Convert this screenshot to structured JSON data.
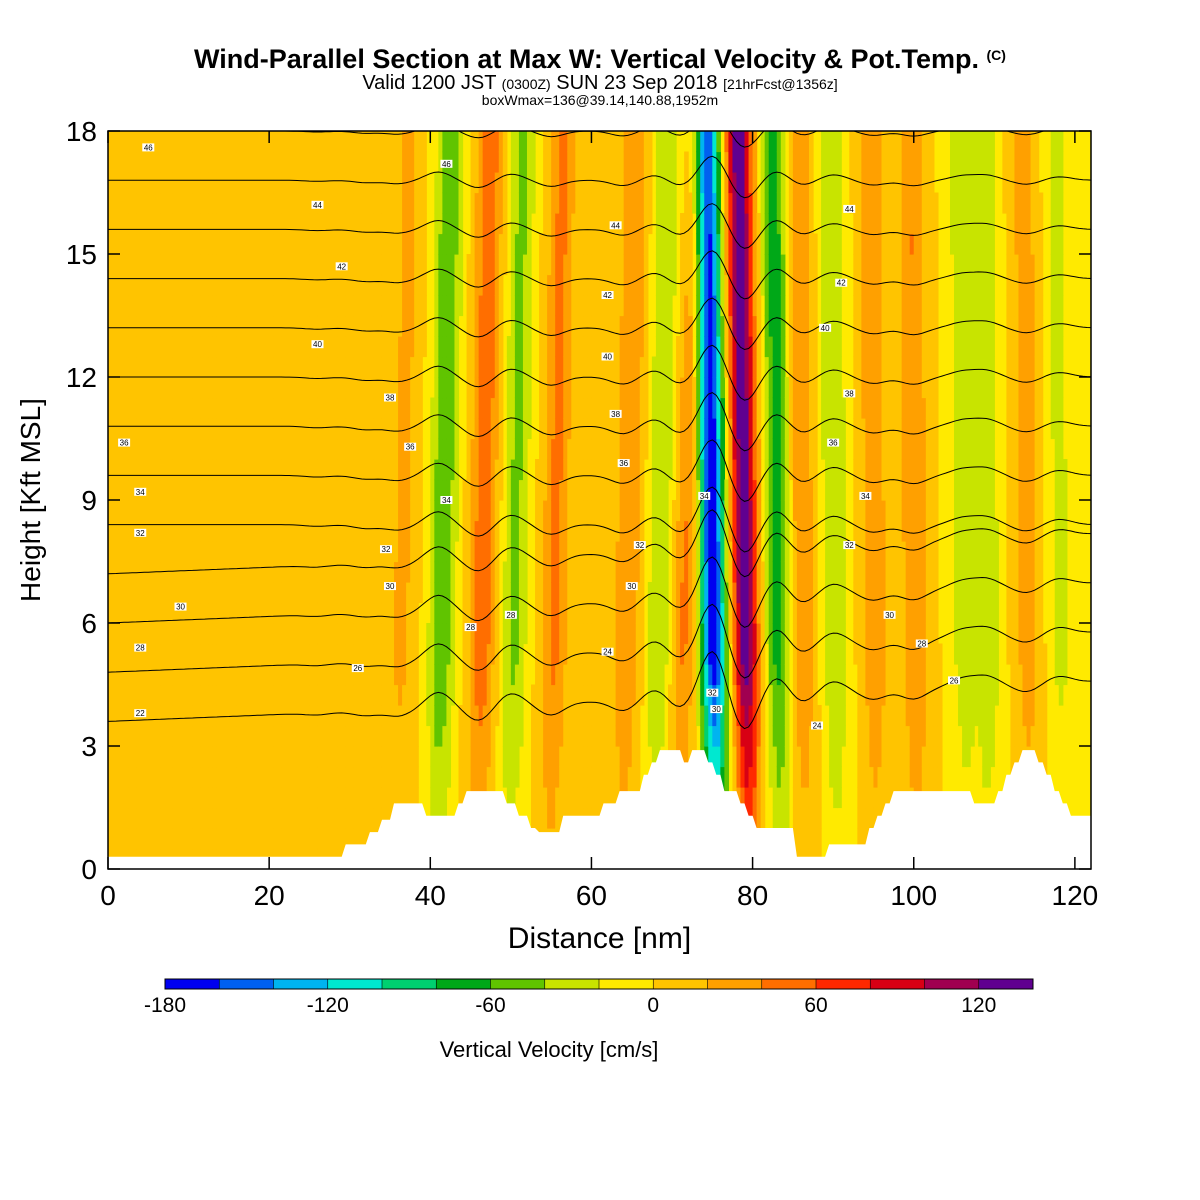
{
  "header": {
    "title": "Wind-Parallel Section at Max W: Vertical Velocity & Pot.Temp.",
    "copyright": "(C)",
    "valid_main": "Valid 1200 JST",
    "valid_utc": "(0300Z)",
    "valid_date": "SUN 23 Sep 2018",
    "forecast": "[21hrFcst@1356z]",
    "boxinfo": "boxWmax=136@39.14,140.88,1952m"
  },
  "chart_data": {
    "type": "heatmap",
    "title": "Wind-Parallel Section at Max W: Vertical Velocity & Pot.Temp.",
    "xlabel": "Distance [nm]",
    "ylabel": "Height [Kft MSL]",
    "xlim": [
      0,
      122
    ],
    "ylim": [
      0,
      18
    ],
    "x_ticks": [
      0,
      20,
      40,
      60,
      80,
      100,
      120
    ],
    "y_ticks": [
      0,
      3,
      6,
      9,
      12,
      15,
      18
    ],
    "colorbar": {
      "label": "Vertical Velocity [cm/s]",
      "ticks": [
        -180,
        -120,
        -60,
        0,
        60,
        120
      ],
      "range": [
        -180,
        140
      ],
      "colors": [
        "#0000f0",
        "#0060f0",
        "#00b4f0",
        "#00e8d0",
        "#00d070",
        "#00a818",
        "#60c400",
        "#c8e400",
        "#ffea00",
        "#ffc400",
        "#ffa000",
        "#ff6e00",
        "#ff2800",
        "#d80014",
        "#a00050",
        "#600090"
      ]
    },
    "w_features": [
      {
        "x": 26,
        "w": 8
      },
      {
        "x": 32,
        "w": 18
      },
      {
        "x": 36,
        "w": 25
      },
      {
        "x": 41,
        "w": -60
      },
      {
        "x": 46,
        "w": 55
      },
      {
        "x": 50,
        "w": -45
      },
      {
        "x": 55,
        "w": 45
      },
      {
        "x": 64,
        "w": 40
      },
      {
        "x": 68,
        "w": -40
      },
      {
        "x": 71,
        "w": 45
      },
      {
        "x": 75,
        "w": -180
      },
      {
        "x": 79,
        "w": 136
      },
      {
        "x": 83,
        "w": -70
      },
      {
        "x": 86,
        "w": 40
      },
      {
        "x": 90,
        "w": -40
      },
      {
        "x": 95,
        "w": 35
      },
      {
        "x": 100,
        "w": 40
      },
      {
        "x": 106,
        "w": -30
      },
      {
        "x": 109,
        "w": -35
      },
      {
        "x": 114,
        "w": 30
      },
      {
        "x": 118,
        "w": -25
      }
    ],
    "theta_contours": [
      22,
      24,
      26,
      28,
      30,
      32,
      34,
      36,
      38,
      40,
      42,
      44,
      46
    ],
    "theta_labels": [
      {
        "text": "46",
        "x": 5,
        "y": 17.6
      },
      {
        "text": "44",
        "x": 26,
        "y": 16.2
      },
      {
        "text": "42",
        "x": 29,
        "y": 14.7
      },
      {
        "text": "40",
        "x": 26,
        "y": 12.8
      },
      {
        "text": "38",
        "x": 35,
        "y": 11.5
      },
      {
        "text": "36",
        "x": 37.5,
        "y": 10.3
      },
      {
        "text": "36",
        "x": 2,
        "y": 10.4
      },
      {
        "text": "34",
        "x": 4,
        "y": 9.2
      },
      {
        "text": "34",
        "x": 42,
        "y": 9.0
      },
      {
        "text": "32",
        "x": 4,
        "y": 8.2
      },
      {
        "text": "32",
        "x": 34.5,
        "y": 7.8
      },
      {
        "text": "30",
        "x": 35,
        "y": 6.9
      },
      {
        "text": "30",
        "x": 9,
        "y": 6.4
      },
      {
        "text": "28",
        "x": 4,
        "y": 5.4
      },
      {
        "text": "28",
        "x": 45,
        "y": 5.9
      },
      {
        "text": "28",
        "x": 50,
        "y": 6.2
      },
      {
        "text": "26",
        "x": 31,
        "y": 4.9
      },
      {
        "text": "22",
        "x": 4,
        "y": 3.8
      },
      {
        "text": "46",
        "x": 42,
        "y": 17.2
      },
      {
        "text": "44",
        "x": 63,
        "y": 15.7
      },
      {
        "text": "42",
        "x": 62,
        "y": 14.0
      },
      {
        "text": "40",
        "x": 62,
        "y": 12.5
      },
      {
        "text": "38",
        "x": 63,
        "y": 11.1
      },
      {
        "text": "36",
        "x": 64,
        "y": 9.9
      },
      {
        "text": "34",
        "x": 74,
        "y": 9.1
      },
      {
        "text": "32",
        "x": 66,
        "y": 7.9
      },
      {
        "text": "30",
        "x": 65,
        "y": 6.9
      },
      {
        "text": "24",
        "x": 62,
        "y": 5.3
      },
      {
        "text": "32",
        "x": 75,
        "y": 4.3
      },
      {
        "text": "30",
        "x": 75.5,
        "y": 3.9
      },
      {
        "text": "44",
        "x": 92,
        "y": 16.1
      },
      {
        "text": "42",
        "x": 91,
        "y": 14.3
      },
      {
        "text": "40",
        "x": 89,
        "y": 13.2
      },
      {
        "text": "38",
        "x": 92,
        "y": 11.6
      },
      {
        "text": "36",
        "x": 90,
        "y": 10.4
      },
      {
        "text": "34",
        "x": 94,
        "y": 9.1
      },
      {
        "text": "32",
        "x": 92,
        "y": 7.9
      },
      {
        "text": "30",
        "x": 97,
        "y": 6.2
      },
      {
        "text": "28",
        "x": 101,
        "y": 5.5
      },
      {
        "text": "26",
        "x": 105,
        "y": 4.6
      },
      {
        "text": "24",
        "x": 88,
        "y": 3.5
      }
    ],
    "terrain": [
      [
        0,
        0.3
      ],
      [
        29,
        0.3
      ],
      [
        29.5,
        0.6
      ],
      [
        32,
        0.6
      ],
      [
        32.5,
        0.9
      ],
      [
        33.5,
        0.9
      ],
      [
        34,
        1.2
      ],
      [
        35,
        1.2
      ],
      [
        35.5,
        1.6
      ],
      [
        39,
        1.6
      ],
      [
        39.5,
        1.3
      ],
      [
        43,
        1.3
      ],
      [
        43.5,
        1.6
      ],
      [
        44,
        1.6
      ],
      [
        44.5,
        1.9
      ],
      [
        49,
        1.9
      ],
      [
        49.5,
        1.6
      ],
      [
        50.5,
        1.6
      ],
      [
        51,
        1.3
      ],
      [
        52,
        1.3
      ],
      [
        52.5,
        1.0
      ],
      [
        53,
        1.0
      ],
      [
        53.5,
        0.9
      ],
      [
        56,
        0.9
      ],
      [
        56.5,
        1.3
      ],
      [
        61,
        1.3
      ],
      [
        61.5,
        1.6
      ],
      [
        63,
        1.6
      ],
      [
        63.5,
        1.9
      ],
      [
        66,
        1.9
      ],
      [
        66.5,
        2.3
      ],
      [
        67,
        2.3
      ],
      [
        67.5,
        2.6
      ],
      [
        68,
        2.6
      ],
      [
        68.5,
        2.9
      ],
      [
        71,
        2.9
      ],
      [
        71.5,
        2.6
      ],
      [
        72,
        2.6
      ],
      [
        72.5,
        2.9
      ],
      [
        74,
        2.9
      ],
      [
        74.5,
        2.6
      ],
      [
        75,
        2.6
      ],
      [
        75.5,
        2.3
      ],
      [
        76,
        2.3
      ],
      [
        76.5,
        1.9
      ],
      [
        78,
        1.9
      ],
      [
        78.5,
        1.6
      ],
      [
        79,
        1.6
      ],
      [
        79.5,
        1.3
      ],
      [
        80,
        1.3
      ],
      [
        80.5,
        1.0
      ],
      [
        85,
        1.0
      ],
      [
        85.5,
        0.3
      ],
      [
        89,
        0.3
      ],
      [
        89.5,
        0.6
      ],
      [
        94,
        0.6
      ],
      [
        94.5,
        1.0
      ],
      [
        95,
        1.0
      ],
      [
        95.5,
        1.3
      ],
      [
        96,
        1.3
      ],
      [
        96.5,
        1.6
      ],
      [
        97,
        1.6
      ],
      [
        97.5,
        1.9
      ],
      [
        107,
        1.9
      ],
      [
        107.5,
        1.6
      ],
      [
        110,
        1.6
      ],
      [
        110.5,
        1.9
      ],
      [
        111,
        1.9
      ],
      [
        111.5,
        2.3
      ],
      [
        112,
        2.3
      ],
      [
        112.5,
        2.6
      ],
      [
        113,
        2.6
      ],
      [
        113.5,
        2.9
      ],
      [
        115,
        2.9
      ],
      [
        115.5,
        2.6
      ],
      [
        116,
        2.6
      ],
      [
        116.5,
        2.3
      ],
      [
        117,
        2.3
      ],
      [
        117.5,
        1.9
      ],
      [
        118,
        1.9
      ],
      [
        118.5,
        1.6
      ],
      [
        119,
        1.6
      ],
      [
        119.5,
        1.3
      ],
      [
        122,
        1.3
      ]
    ]
  }
}
